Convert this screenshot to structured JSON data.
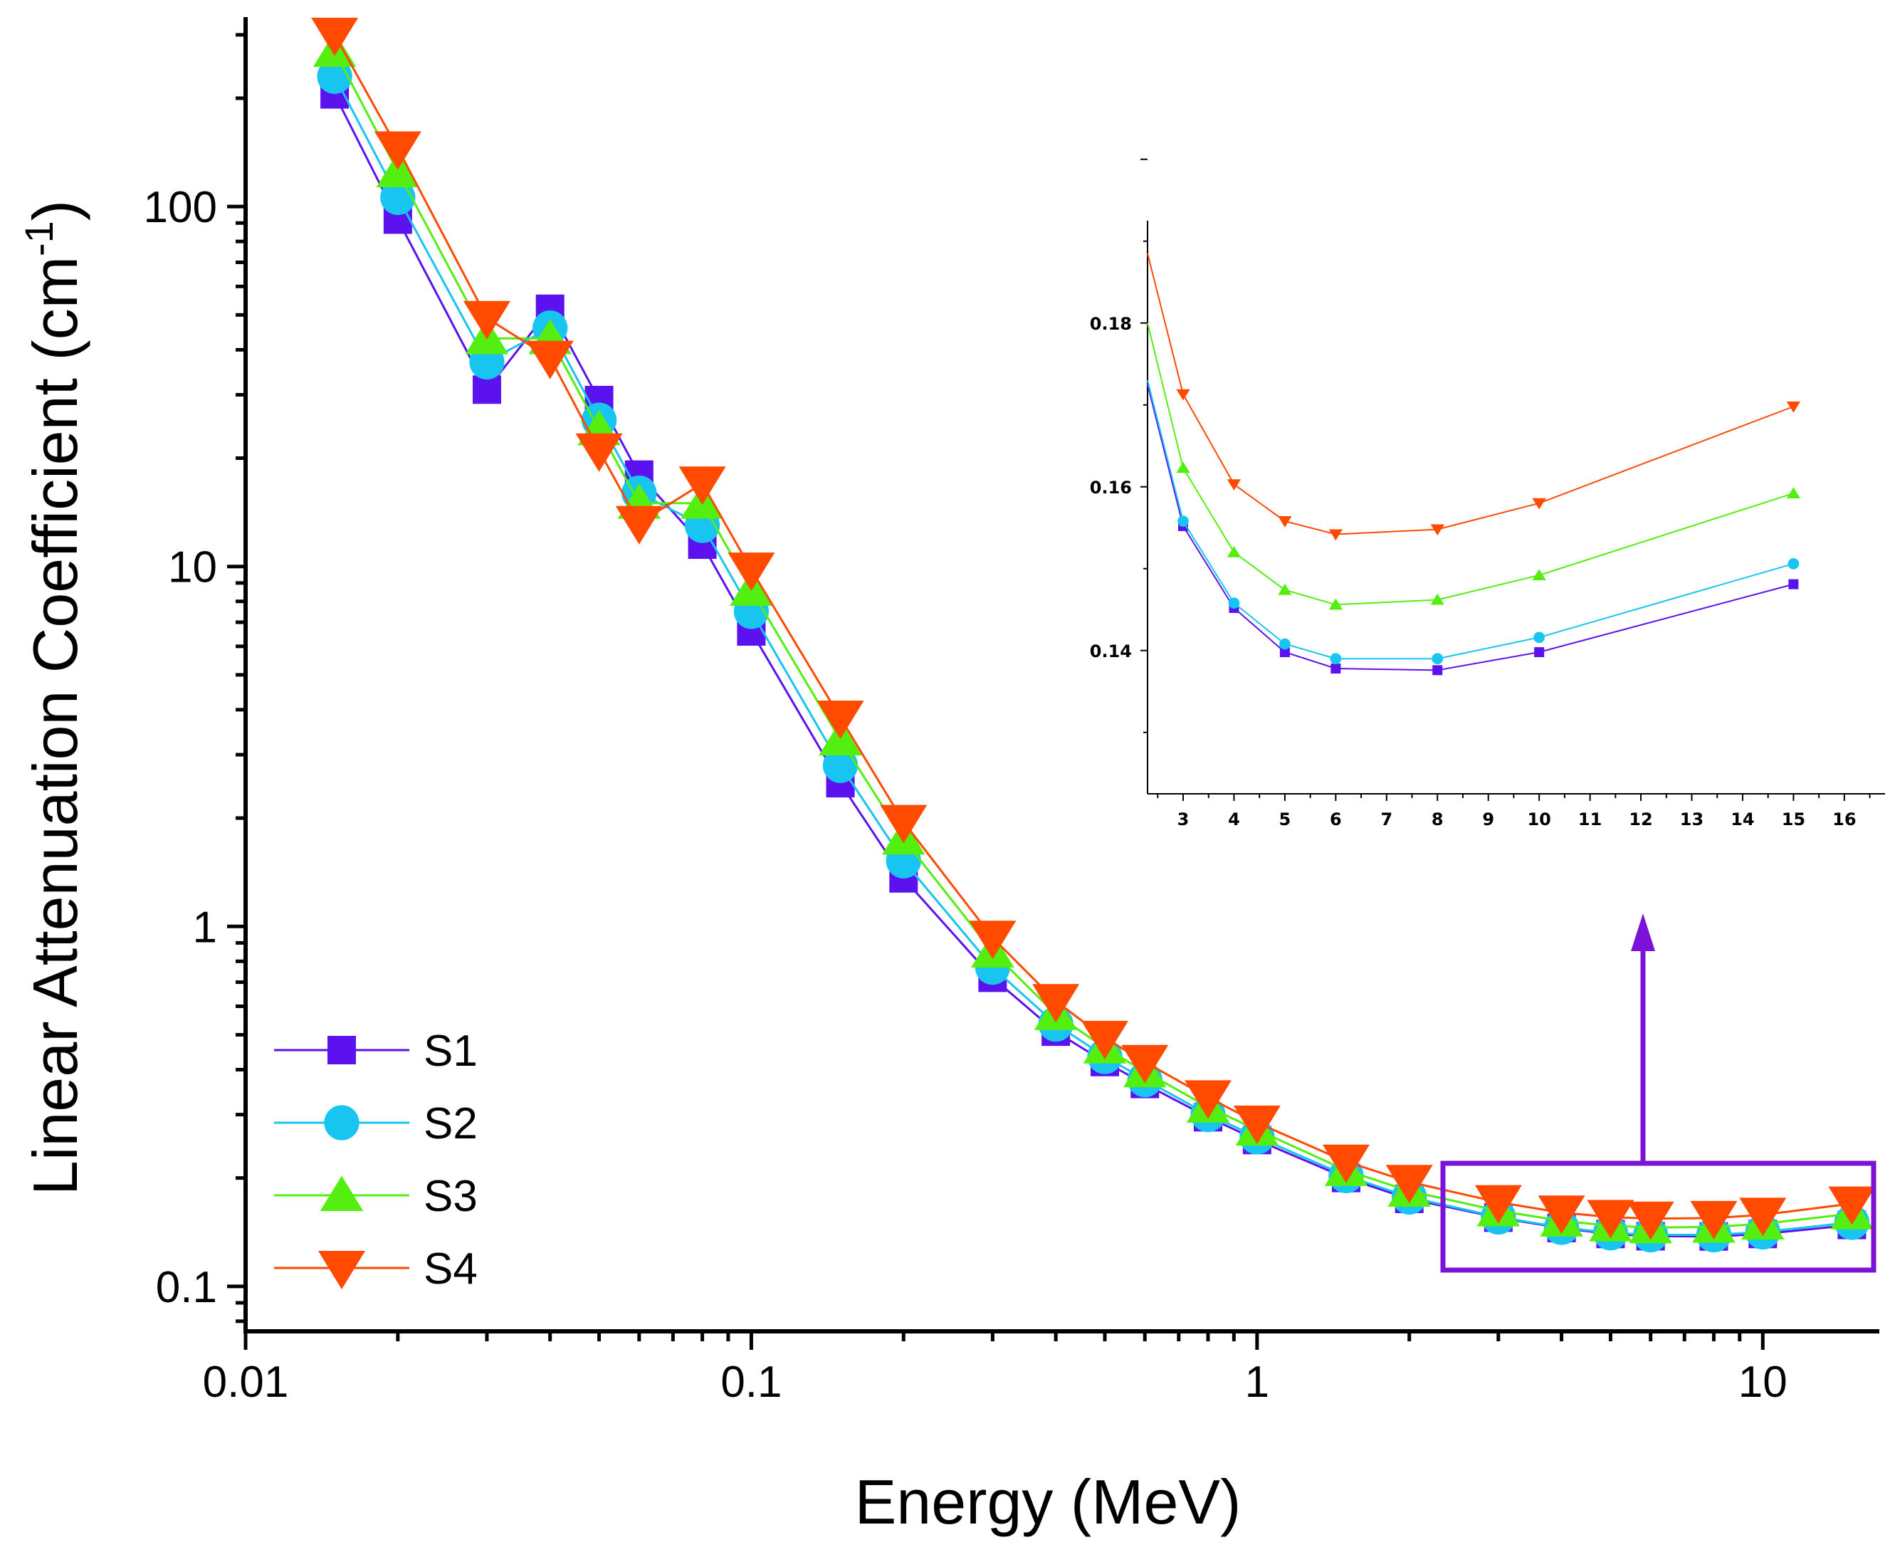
{
  "chart_data": [
    {
      "type": "line",
      "xlabel": "Energy (MeV)",
      "ylabel": "Linear Attenuation Coefficient (cm",
      "ylabel_sup": "-1",
      "ylabel_close": ")",
      "x_scale": "log",
      "y_scale": "log",
      "xlim": [
        0.01,
        17
      ],
      "ylim": [
        0.075,
        330
      ],
      "x_ticks": [
        {
          "v": 0.01,
          "label": "0.01"
        },
        {
          "v": 0.1,
          "label": "0.1"
        },
        {
          "v": 1,
          "label": "1"
        },
        {
          "v": 10,
          "label": "10"
        }
      ],
      "y_ticks": [
        {
          "v": 0.1,
          "label": "0.1"
        },
        {
          "v": 1,
          "label": "1"
        },
        {
          "v": 10,
          "label": "10"
        },
        {
          "v": 100,
          "label": "100"
        }
      ],
      "legend_position": "bottom-left",
      "x": [
        0.015,
        0.02,
        0.03,
        0.04,
        0.05,
        0.06,
        0.08,
        0.1,
        0.15,
        0.2,
        0.3,
        0.4,
        0.5,
        0.6,
        0.8,
        1,
        1.5,
        2,
        3,
        4,
        5,
        6,
        8,
        10,
        15
      ],
      "series": [
        {
          "name": "S1",
          "color": "#5b12ee",
          "marker": "square",
          "values": [
            205,
            92,
            31,
            52,
            29,
            18,
            11.5,
            6.6,
            2.5,
            1.36,
            0.72,
            0.51,
            0.42,
            0.365,
            0.295,
            0.255,
            0.2,
            0.175,
            0.1552,
            0.1452,
            0.1398,
            0.1378,
            0.1376,
            0.1398,
            0.1481
          ]
        },
        {
          "name": "S2",
          "color": "#17c5f0",
          "marker": "circle",
          "values": [
            230,
            106,
            37,
            46,
            25.5,
            16,
            13,
            7.5,
            2.8,
            1.52,
            0.77,
            0.535,
            0.435,
            0.375,
            0.3,
            0.26,
            0.203,
            0.177,
            0.1558,
            0.1458,
            0.1408,
            0.139,
            0.139,
            0.1416,
            0.1506
          ]
        },
        {
          "name": "S3",
          "color": "#55ee11",
          "marker": "triangle-up",
          "values": [
            270,
            125,
            43,
            43,
            24,
            15,
            15,
            8.6,
            3.3,
            1.75,
            0.85,
            0.57,
            0.46,
            0.395,
            0.315,
            0.272,
            0.21,
            0.184,
            0.1623,
            0.152,
            0.1474,
            0.1456,
            0.1462,
            0.1492,
            0.1592
          ]
        },
        {
          "name": "S4",
          "color": "#ff4a00",
          "marker": "triangle-down",
          "values": [
            300,
            145,
            49,
            38,
            21,
            13.2,
            17,
            9.8,
            3.8,
            1.95,
            0.93,
            0.62,
            0.49,
            0.42,
            0.335,
            0.285,
            0.222,
            0.195,
            0.1713,
            0.1603,
            0.1558,
            0.1542,
            0.1548,
            0.158,
            0.1698
          ]
        }
      ]
    },
    {
      "type": "line",
      "role": "inset",
      "x_scale": "linear",
      "y_scale": "linear",
      "xlim": [
        2.3,
        16.8
      ],
      "ylim": [
        0.1225,
        0.1925
      ],
      "x_ticks": [
        {
          "v": 3,
          "label": "3"
        },
        {
          "v": 4,
          "label": "4"
        },
        {
          "v": 5,
          "label": "5"
        },
        {
          "v": 6,
          "label": "6"
        },
        {
          "v": 7,
          "label": "7"
        },
        {
          "v": 8,
          "label": "8"
        },
        {
          "v": 9,
          "label": "9"
        },
        {
          "v": 10,
          "label": "10"
        },
        {
          "v": 11,
          "label": "11"
        },
        {
          "v": 12,
          "label": "12"
        },
        {
          "v": 13,
          "label": "13"
        },
        {
          "v": 14,
          "label": "14"
        },
        {
          "v": 15,
          "label": "15"
        },
        {
          "v": 16,
          "label": "16"
        }
      ],
      "y_ticks": [
        {
          "v": 0.14,
          "label": "0.14"
        },
        {
          "v": 0.16,
          "label": "0.16"
        },
        {
          "v": 0.18,
          "label": "0.18"
        }
      ],
      "x": [
        2.3,
        3,
        4,
        5,
        6,
        8,
        10,
        15
      ],
      "series": [
        {
          "name": "S1",
          "color": "#5b12ee",
          "marker": "square",
          "values": [
            0.1725,
            0.1552,
            0.1452,
            0.1398,
            0.1378,
            0.1376,
            0.1398,
            0.1481
          ]
        },
        {
          "name": "S2",
          "color": "#17c5f0",
          "marker": "circle",
          "values": [
            0.173,
            0.1558,
            0.1458,
            0.1408,
            0.139,
            0.139,
            0.1416,
            0.1506
          ]
        },
        {
          "name": "S3",
          "color": "#55ee11",
          "marker": "triangle-up",
          "values": [
            0.18,
            0.1623,
            0.152,
            0.1474,
            0.1456,
            0.1462,
            0.1492,
            0.1592
          ]
        },
        {
          "name": "S4",
          "color": "#ff4a00",
          "marker": "triangle-down",
          "values": [
            0.1885,
            0.1713,
            0.1603,
            0.1558,
            0.1542,
            0.1548,
            0.158,
            0.1698
          ]
        }
      ]
    }
  ],
  "highlight_color": "#7a12d8"
}
